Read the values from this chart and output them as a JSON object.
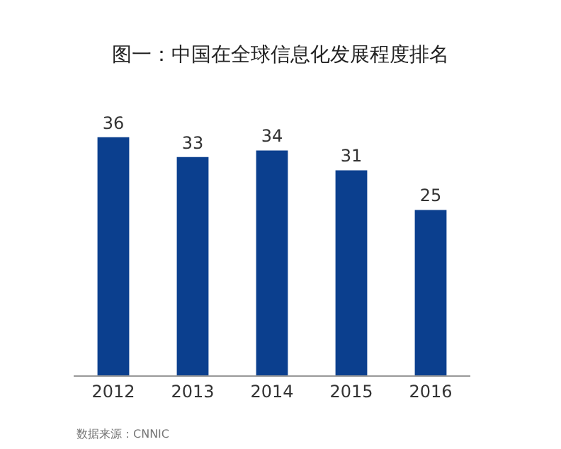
{
  "chart_data": {
    "type": "bar",
    "title": "图一：中国在全球信息化发展程度排名",
    "categories": [
      "2012",
      "2013",
      "2014",
      "2015",
      "2016"
    ],
    "values": [
      36,
      33,
      34,
      31,
      25
    ],
    "color": "#0b3f8e",
    "data_labels": true,
    "annotations": [
      "数据来源：CNNIC"
    ]
  }
}
